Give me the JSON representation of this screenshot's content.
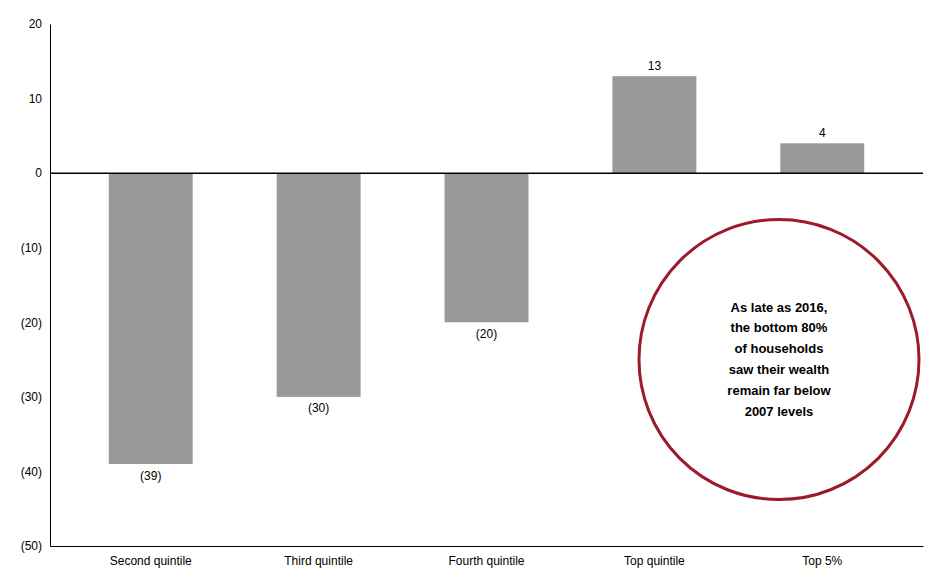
{
  "chart_data": {
    "type": "bar",
    "categories": [
      "Second quintile",
      "Third quintile",
      "Fourth quintile",
      "Top quintile",
      "Top 5%"
    ],
    "values": [
      -39,
      -30,
      -20,
      13,
      4
    ],
    "value_labels": [
      "(39)",
      "(30)",
      "(20)",
      "13",
      "4"
    ],
    "data_labels": true,
    "color": "#999999",
    "ylim": [
      -50,
      20
    ],
    "yticks": [
      {
        "value": -50,
        "label": "(50)"
      },
      {
        "value": -40,
        "label": "(40)"
      },
      {
        "value": -30,
        "label": "(30)"
      },
      {
        "value": -20,
        "label": "(20)"
      },
      {
        "value": -10,
        "label": "(10)"
      },
      0,
      10,
      20
    ],
    "grid": false,
    "annotations": [
      {
        "text": "As late as 2016,\nthe bottom 80%\nof households\nsaw their wealth\nremain far below\n2007 levels",
        "color": "#9B1B2A"
      }
    ]
  }
}
